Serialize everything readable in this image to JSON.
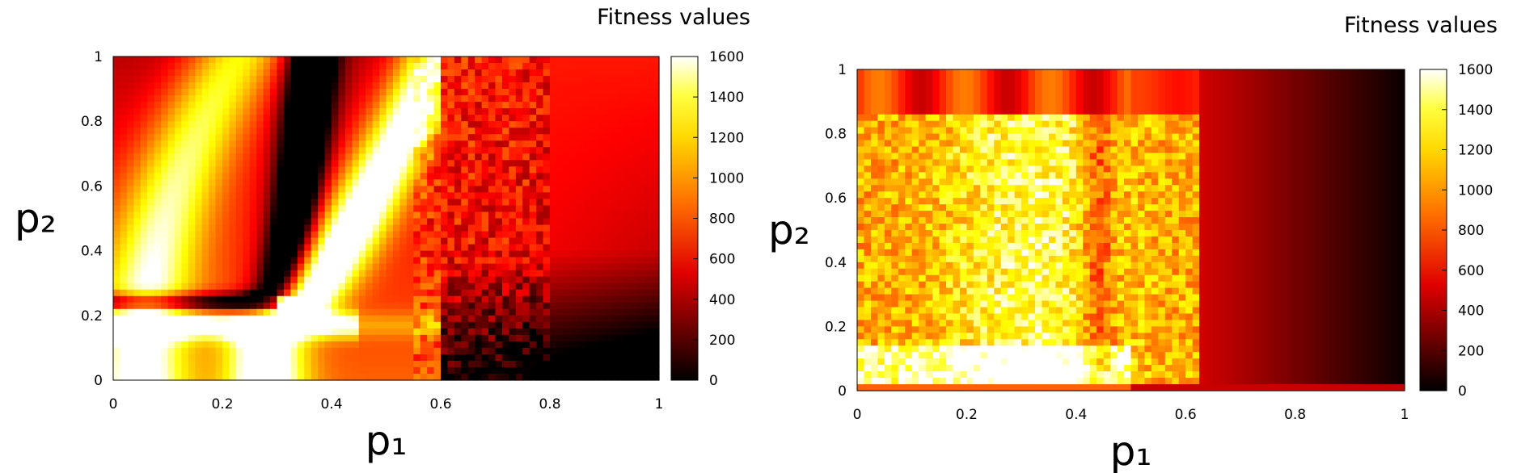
{
  "chart_data": [
    {
      "type": "heatmap",
      "title": "Fitness values",
      "xlabel": "p₁",
      "ylabel": "p₂",
      "xlim": [
        0,
        1
      ],
      "ylim": [
        0,
        1
      ],
      "colorbar_range": [
        0,
        1600
      ],
      "x_ticks": [
        "0",
        "0.2",
        "0.4",
        "0.6",
        "0.8",
        "1"
      ],
      "y_ticks": [
        "0",
        "0.2",
        "0.4",
        "0.6",
        "0.8",
        "1"
      ],
      "colorbar_ticks": [
        "0",
        "200",
        "400",
        "600",
        "800",
        "1000",
        "1200",
        "1400",
        "1600"
      ],
      "colormap": "hot"
    },
    {
      "type": "heatmap",
      "title": "Fitness values",
      "xlabel": "p₁",
      "ylabel": "p₂",
      "xlim": [
        0,
        1
      ],
      "ylim": [
        0,
        1
      ],
      "colorbar_range": [
        0,
        1600
      ],
      "x_ticks": [
        "0",
        "0.2",
        "0.4",
        "0.6",
        "0.8",
        "1"
      ],
      "y_ticks": [
        "0",
        "0.2",
        "0.4",
        "0.6",
        "0.8",
        "1"
      ],
      "colorbar_ticks": [
        "0",
        "200",
        "400",
        "600",
        "800",
        "1000",
        "1200",
        "1400",
        "1600"
      ],
      "colormap": "hot"
    }
  ]
}
